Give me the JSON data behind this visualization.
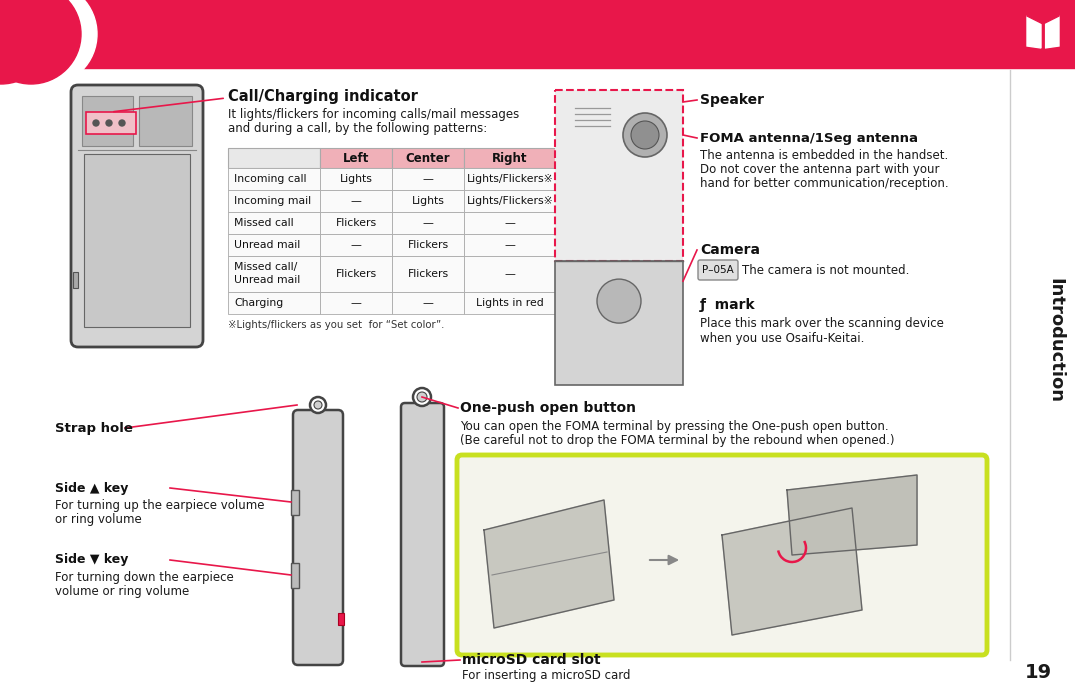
{
  "bg_color": "#ffffff",
  "header_color": "#e8174a",
  "page_number": "19",
  "section_label": "Introduction",
  "call_indicator_title": "Call/Charging indicator",
  "call_indicator_desc1": "It lights/flickers for incoming calls/mail messages",
  "call_indicator_desc2": "and during a call, by the following patterns:",
  "table_cols": [
    "",
    "Left",
    "Center",
    "Right"
  ],
  "table_rows": [
    [
      "Incoming call",
      "Lights",
      "—",
      "Lights/Flickers※"
    ],
    [
      "Incoming mail",
      "—",
      "Lights",
      "Lights/Flickers※"
    ],
    [
      "Missed call",
      "Flickers",
      "—",
      "—"
    ],
    [
      "Unread mail",
      "—",
      "Flickers",
      "—"
    ],
    [
      "Missed call/\nUnread mail",
      "Flickers",
      "Flickers",
      "—"
    ],
    [
      "Charging",
      "—",
      "—",
      "Lights in red"
    ]
  ],
  "footnote": "※Lights/flickers as you set  for “Set color”.",
  "speaker_label": "Speaker",
  "foma_label": "FOMA antenna/1Seg antenna",
  "foma_desc1": "The antenna is embedded in the handset.",
  "foma_desc2": "Do not cover the antenna part with your",
  "foma_desc3": "hand for better communication/reception.",
  "camera_label": "Camera",
  "camera_badge": "P–05A",
  "camera_desc": "The camera is not mounted.",
  "mark_symbol": "ƒ",
  "mark_label": "mark",
  "mark_desc1": "Place this mark over the scanning device",
  "mark_desc2": "when you use Osaifu-Keitai.",
  "strap_label": "Strap hole",
  "side_up_icon": "▲",
  "side_up_label": "Side ▲ key",
  "side_up_desc1": "For turning up the earpiece volume",
  "side_up_desc2": "or ring volume",
  "side_down_icon": "▼",
  "side_down_label": "Side ▼ key",
  "side_down_desc1": "For turning down the earpiece",
  "side_down_desc2": "volume or ring volume",
  "one_push_label": "One-push open button",
  "one_push_desc1": "You can open the FOMA terminal by pressing the One-push open button.",
  "one_push_desc2": "(Be careful not to drop the FOMA terminal by the rebound when opened.)",
  "microsd_label": "microSD card slot",
  "microsd_desc": "For inserting a microSD card",
  "accent_color": "#e8174a",
  "lime_green": "#c8e020",
  "table_header_bg": "#f0b0b8",
  "table_row_bg": "#ffffff",
  "table_border": "#aaaaaa",
  "body_fs": 8.5,
  "small_fs": 7.8,
  "bold_fs": 9.5,
  "phone_body": "#d4d4d4",
  "phone_edge": "#444444",
  "phone_screen": "#c0c0c0",
  "phone_top": "#b8b8b8"
}
